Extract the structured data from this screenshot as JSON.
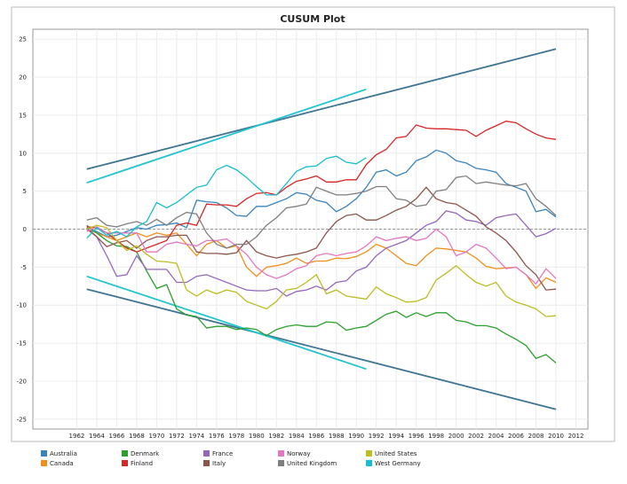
{
  "chart_data": {
    "type": "line",
    "title": "CUSUM Plot",
    "x": [
      1963,
      1964,
      1965,
      1966,
      1967,
      1968,
      1969,
      1970,
      1971,
      1972,
      1973,
      1974,
      1975,
      1976,
      1977,
      1978,
      1979,
      1980,
      1981,
      1982,
      1983,
      1984,
      1985,
      1986,
      1987,
      1988,
      1989,
      1990,
      1991,
      1992,
      1993,
      1994,
      1995,
      1996,
      1997,
      1998,
      1999,
      2000,
      2001,
      2002,
      2003,
      2004,
      2005,
      2006,
      2007,
      2008,
      2009,
      2010
    ],
    "series": [
      {
        "name": "Australia",
        "color": "#3a84be",
        "values": [
          0,
          -0.3,
          -1,
          -0.8,
          -0.3,
          0.2,
          0,
          0.5,
          0.6,
          0.8,
          0.2,
          3.8,
          3.6,
          3.5,
          2.8,
          1.8,
          1.7,
          3,
          3,
          3.5,
          4,
          4.8,
          4.6,
          3.8,
          3.5,
          2.3,
          3,
          4,
          5.5,
          7.5,
          7.8,
          7,
          7.5,
          9,
          9.5,
          10.4,
          10,
          9,
          8.7,
          8,
          7.8,
          7.5,
          6,
          5.5,
          5,
          2.3,
          2.6,
          1.6
        ]
      },
      {
        "name": "Canada",
        "color": "#f28e1c",
        "values": [
          0,
          -0.5,
          -1,
          -1.5,
          -1,
          -0.5,
          -1,
          -0.5,
          -0.8,
          -0.5,
          -2,
          -3.5,
          -2,
          -1.5,
          -2.5,
          -2.2,
          -5,
          -6.2,
          -5,
          -4.8,
          -4.5,
          -3.8,
          -4.5,
          -4.2,
          -4.2,
          -3.8,
          -3.9,
          -3.6,
          -3,
          -2,
          -2.5,
          -3.5,
          -4.5,
          -4.8,
          -3.5,
          -2.5,
          -2.6,
          -2.8,
          -3,
          -3.8,
          -4.9,
          -5.2,
          -5.1,
          -5,
          -6,
          -7.8,
          -6.4,
          -7
        ]
      },
      {
        "name": "Denmark",
        "color": "#2ca02c",
        "values": [
          0.5,
          -0.5,
          -1.5,
          -2.2,
          -2.3,
          -3,
          -5.5,
          -7.8,
          -7.3,
          -10.5,
          -11.3,
          -11.5,
          -13,
          -12.8,
          -12.8,
          -13.2,
          -13,
          -13.2,
          -14,
          -13.2,
          -12.8,
          -12.6,
          -12.8,
          -12.8,
          -12.2,
          -12.3,
          -13.3,
          -13,
          -12.8,
          -12,
          -11.2,
          -10.8,
          -11.6,
          -11,
          -11.5,
          -11,
          -11,
          -12,
          -12.2,
          -12.7,
          -12.7,
          -13,
          -13.8,
          -14.5,
          -15.3,
          -17,
          -16.5,
          -17.6
        ]
      },
      {
        "name": "Finland",
        "color": "#d62728",
        "values": [
          0.3,
          0.2,
          -0.5,
          -1.5,
          -2.5,
          -3,
          -2.5,
          -2,
          -1.5,
          0.5,
          0.8,
          0.5,
          3.3,
          3.2,
          3.2,
          3,
          4,
          4.7,
          4.8,
          4.5,
          5.5,
          6.3,
          6.6,
          7,
          6.2,
          6.2,
          6.5,
          6.5,
          8.5,
          9.8,
          10.5,
          12,
          12.2,
          13.7,
          13.3,
          13.2,
          13.2,
          13.1,
          13,
          12.2,
          13,
          13.6,
          14.2,
          14,
          13.2,
          12.5,
          12,
          11.8
        ]
      },
      {
        "name": "France",
        "color": "#9467bd",
        "values": [
          0,
          -1,
          -3.5,
          -6.2,
          -6,
          -3.5,
          -5.3,
          -5.3,
          -5.3,
          -7,
          -7,
          -6.2,
          -6,
          -6.5,
          -7,
          -7.5,
          -8,
          -8.1,
          -8.1,
          -7.8,
          -8.8,
          -8.2,
          -8,
          -7.5,
          -8,
          -7,
          -6.8,
          -5.5,
          -5,
          -3.5,
          -2.5,
          -2,
          -1.5,
          -0.5,
          0.5,
          1,
          2.4,
          2.1,
          1.2,
          1,
          0.5,
          1.5,
          1.8,
          2,
          0.5,
          -1,
          -0.6,
          0.1
        ]
      },
      {
        "name": "Italy",
        "color": "#8c564b",
        "values": [
          0.2,
          -1,
          -2.3,
          -1.8,
          -1.5,
          -2.5,
          -1.5,
          -1,
          -1,
          -0.8,
          -0.8,
          -3,
          -3.2,
          -3.2,
          -3.3,
          -3.1,
          -1.5,
          -3,
          -3.5,
          -3.8,
          -3.5,
          -3.3,
          -3,
          -2.5,
          -0.5,
          1,
          1.8,
          2,
          1.2,
          1.2,
          1.8,
          2.5,
          3,
          4,
          5.5,
          4,
          3.5,
          3.3,
          2.5,
          1.7,
          0.3,
          -0.5,
          -1.5,
          -3,
          -4.8,
          -6,
          -8,
          -7.9
        ]
      },
      {
        "name": "Norway",
        "color": "#e377c2",
        "values": [
          -0.3,
          0.3,
          -0.5,
          -0.5,
          -0.5,
          -0.5,
          -3,
          -3,
          -2,
          -1.7,
          -2,
          -2.2,
          -1.5,
          -1.5,
          -1.3,
          -2.2,
          -3.3,
          -5,
          -6,
          -6.5,
          -6,
          -5.2,
          -4.8,
          -3.5,
          -3.2,
          -3.5,
          -3.2,
          -3,
          -2.2,
          -1,
          -1.5,
          -1.2,
          -1,
          -1.5,
          -1.2,
          0,
          -1,
          -3.5,
          -3,
          -2,
          -2.5,
          -3.8,
          -5.2,
          -5,
          -6,
          -7.2,
          -5.2,
          -6.5
        ]
      },
      {
        "name": "United Kingdom",
        "color": "#7f7f7f",
        "values": [
          1.2,
          1.5,
          0.5,
          0.3,
          0.7,
          1,
          0.5,
          1.3,
          0.5,
          1.5,
          2.2,
          2,
          -0.5,
          -2,
          -2.5,
          -2,
          -2,
          -1,
          0.5,
          1.5,
          2.8,
          3,
          3.3,
          5.5,
          5,
          4.5,
          4.5,
          4.7,
          5,
          5.6,
          5.6,
          4,
          3.8,
          3,
          3.2,
          5,
          5.2,
          6.8,
          7,
          6,
          6.2,
          6,
          5.8,
          5.7,
          6,
          4,
          3,
          1.8
        ]
      },
      {
        "name": "United States",
        "color": "#bcbd22",
        "values": [
          0,
          0.5,
          0.2,
          -1.5,
          -2.8,
          -2.2,
          -3.3,
          -4.2,
          -4.3,
          -4.5,
          -8,
          -8.8,
          -8,
          -8.5,
          -8,
          -8.3,
          -9.5,
          -10,
          -10.5,
          -9.5,
          -8,
          -7.8,
          -7,
          -6,
          -8.5,
          -8,
          -8.8,
          -9,
          -9.2,
          -7.6,
          -8.5,
          -9,
          -9.6,
          -9.5,
          -9,
          -6.7,
          -5.8,
          -4.8,
          -6,
          -7,
          -7.5,
          -7,
          -8.8,
          -9.6,
          -10,
          -10.5,
          -11.5,
          -11.4
        ]
      },
      {
        "name": "West Germany",
        "color": "#17becf",
        "values": [
          -1.2,
          0.2,
          -0.8,
          -0.3,
          -1,
          0.3,
          1,
          3.5,
          2.8,
          3.5,
          4.5,
          5.5,
          5.8,
          7.8,
          8.4,
          7.8,
          6.8,
          5.6,
          4.5,
          4.5,
          6,
          7.6,
          8.2,
          8.3,
          9.3,
          9.6,
          8.8,
          8.6,
          9.4,
          null,
          null,
          null,
          null,
          null,
          null,
          null,
          null,
          null,
          null,
          null,
          null,
          null,
          null,
          null,
          null,
          null,
          null,
          null
        ]
      }
    ],
    "limits": [
      {
        "color": "#3f7592",
        "x": [
          1963,
          2010
        ],
        "values": [
          7.9,
          23.7
        ]
      },
      {
        "color": "#3f7592",
        "x": [
          1963,
          2010
        ],
        "values": [
          -7.9,
          -23.7
        ]
      },
      {
        "color": "#22c4cf",
        "x": [
          1963,
          1991
        ],
        "values": [
          6.1,
          18.4
        ]
      },
      {
        "color": "#22c4cf",
        "x": [
          1963,
          1991
        ],
        "values": [
          -6.2,
          -18.4
        ]
      }
    ],
    "xlim": [
      1957.6,
      2013.2
    ],
    "ylim": [
      -26.3,
      26.3
    ],
    "xticks": [
      1962,
      1964,
      1966,
      1968,
      1970,
      1972,
      1974,
      1976,
      1978,
      1980,
      1982,
      1984,
      1986,
      1988,
      1990,
      1992,
      1994,
      1996,
      1998,
      2000,
      2002,
      2004,
      2006,
      2008,
      2010,
      2012
    ],
    "yticks": [
      -25,
      -20,
      -15,
      -10,
      -5,
      0,
      5,
      10,
      15,
      20,
      25
    ],
    "grid": true,
    "legend": "bottom"
  }
}
